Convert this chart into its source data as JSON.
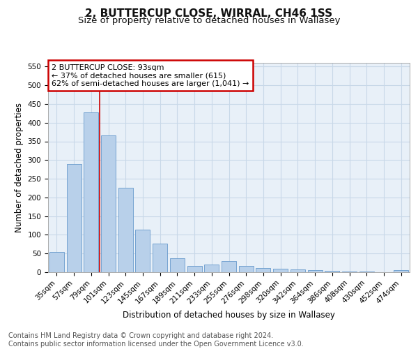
{
  "title": "2, BUTTERCUP CLOSE, WIRRAL, CH46 1SS",
  "subtitle": "Size of property relative to detached houses in Wallasey",
  "xlabel": "Distribution of detached houses by size in Wallasey",
  "ylabel": "Number of detached properties",
  "categories": [
    "35sqm",
    "57sqm",
    "79sqm",
    "101sqm",
    "123sqm",
    "145sqm",
    "167sqm",
    "189sqm",
    "211sqm",
    "233sqm",
    "255sqm",
    "276sqm",
    "298sqm",
    "320sqm",
    "342sqm",
    "364sqm",
    "386sqm",
    "408sqm",
    "430sqm",
    "452sqm",
    "474sqm"
  ],
  "values": [
    55,
    290,
    428,
    365,
    225,
    113,
    77,
    38,
    17,
    20,
    29,
    17,
    11,
    10,
    8,
    5,
    4,
    1,
    1,
    0,
    5
  ],
  "bar_color": "#b8d0ea",
  "bar_edge_color": "#6699cc",
  "grid_color": "#c8d8e8",
  "bg_color": "#e8f0f8",
  "vline_color": "#cc0000",
  "vline_pos": 2.5,
  "annotation_text": "2 BUTTERCUP CLOSE: 93sqm\n← 37% of detached houses are smaller (615)\n62% of semi-detached houses are larger (1,041) →",
  "annotation_box_color": "#cc0000",
  "ylim": [
    0,
    560
  ],
  "yticks": [
    0,
    50,
    100,
    150,
    200,
    250,
    300,
    350,
    400,
    450,
    500,
    550
  ],
  "footer_text": "Contains HM Land Registry data © Crown copyright and database right 2024.\nContains public sector information licensed under the Open Government Licence v3.0.",
  "title_fontsize": 11,
  "subtitle_fontsize": 9.5,
  "label_fontsize": 8.5,
  "tick_fontsize": 7.5,
  "footer_fontsize": 7,
  "annotation_fontsize": 8
}
